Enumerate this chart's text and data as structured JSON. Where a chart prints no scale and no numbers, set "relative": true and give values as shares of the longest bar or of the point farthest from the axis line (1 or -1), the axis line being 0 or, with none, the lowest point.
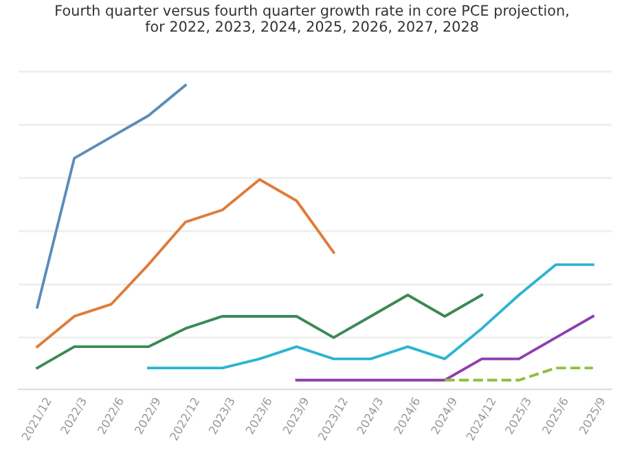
{
  "chart_data": {
    "type": "line",
    "title": "Fourth quarter versus fourth quarter growth rate in core PCE projection,\nfor 2022, 2023, 2024, 2025, 2026, 2027, 2028",
    "relative": true,
    "grid": "y",
    "legend": false,
    "categories": [
      "2021/12",
      "2022/3",
      "2022/6",
      "2022/9",
      "2022/12",
      "2023/3",
      "2023/6",
      "2023/9",
      "2023/12",
      "2024/3",
      "2024/6",
      "2024/9",
      "2024/12",
      "2025/3",
      "2025/6",
      "2025/9"
    ],
    "series": [
      {
        "color": "#5b8db8",
        "values": [
          0.27,
          0.76,
          0.83,
          0.9,
          1,
          null,
          null,
          null,
          null,
          null,
          null,
          null,
          null,
          null,
          null,
          null
        ]
      },
      {
        "color": "#e07b39",
        "values": [
          0.14,
          0.24,
          0.28,
          0.41,
          0.55,
          0.59,
          0.69,
          0.62,
          0.45,
          null,
          null,
          null,
          null,
          null,
          null,
          null
        ]
      },
      {
        "color": "#3a8a55",
        "values": [
          0.07,
          0.14,
          0.14,
          0.14,
          0.2,
          0.24,
          0.24,
          0.24,
          0.17,
          0.24,
          0.31,
          0.24,
          0.31,
          null,
          null,
          null
        ]
      },
      {
        "color": "#2bb5d0",
        "values": [
          null,
          null,
          null,
          0.07,
          0.07,
          0.07,
          0.1,
          0.14,
          0.1,
          0.1,
          0.14,
          0.1,
          0.2,
          0.31,
          0.41,
          0.41
        ]
      },
      {
        "color": "#8e3fae",
        "values": [
          null,
          null,
          null,
          null,
          null,
          null,
          null,
          0.03,
          0.03,
          0.03,
          0.03,
          0.03,
          0.1,
          0.1,
          0.17,
          0.24
        ]
      },
      {
        "color": "#8fbf3f",
        "line_style": "dashed",
        "values": [
          null,
          null,
          null,
          null,
          null,
          null,
          null,
          null,
          null,
          null,
          null,
          0.03,
          0.03,
          0.03,
          0.07,
          0.07
        ]
      }
    ]
  }
}
